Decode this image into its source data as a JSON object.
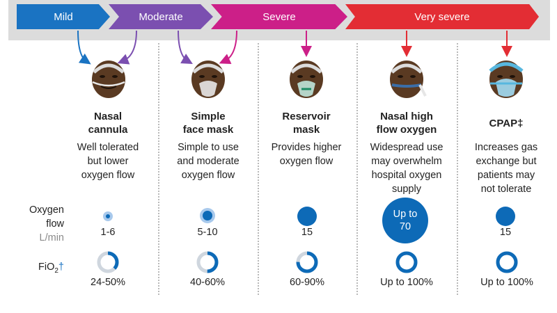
{
  "severity": {
    "mild": "Mild",
    "moderate": "Moderate",
    "severe": "Severe",
    "very_severe": "Very severe",
    "colors": {
      "mild": "#1a73c2",
      "moderate": "#7b4fb0",
      "severe": "#cc1f88",
      "very_severe": "#e32d34"
    }
  },
  "devices": [
    {
      "name_line1": "Nasal",
      "name_line2": "cannula",
      "desc_line1": "Well tolerated",
      "desc_line2": "but lower",
      "desc_line3": "oxygen flow",
      "desc_line4": "",
      "flow": "1-6",
      "fio2": "24-50%",
      "fio2_fill": 0.37
    },
    {
      "name_line1": "Simple",
      "name_line2": "face mask",
      "desc_line1": "Simple to use",
      "desc_line2": "and moderate",
      "desc_line3": "oxygen flow",
      "desc_line4": "",
      "flow": "5-10",
      "fio2": "40-60%",
      "fio2_fill": 0.5
    },
    {
      "name_line1": "Reservoir",
      "name_line2": "mask",
      "desc_line1": "Provides higher",
      "desc_line2": "oxygen flow",
      "desc_line3": "",
      "desc_line4": "",
      "flow": "15",
      "fio2": "60-90%",
      "fio2_fill": 0.75
    },
    {
      "name_line1": "Nasal high",
      "name_line2": "flow oxygen",
      "desc_line1": "Widespread use",
      "desc_line2": "may overwhelm",
      "desc_line3": "hospital oxygen",
      "desc_line4": "supply",
      "flow_line1": "Up to",
      "flow_line2": "70",
      "fio2": "Up to 100%",
      "fio2_fill": 1.0
    },
    {
      "name_line1": "CPAP‡",
      "name_line2": "",
      "desc_line1": "Increases gas",
      "desc_line2": "exchange but",
      "desc_line3": "patients may",
      "desc_line4": "not tolerate",
      "flow": "15",
      "fio2": "Up to 100%",
      "fio2_fill": 1.0
    }
  ],
  "row_labels": {
    "oxygen": "Oxygen",
    "flow": "flow",
    "unit": "L/min",
    "fio2_main": "FiO",
    "fio2_sub": "2",
    "fio2_mark": "†"
  },
  "flow_levels": [
    0.12,
    0.3,
    0.45,
    1.0,
    0.45
  ]
}
